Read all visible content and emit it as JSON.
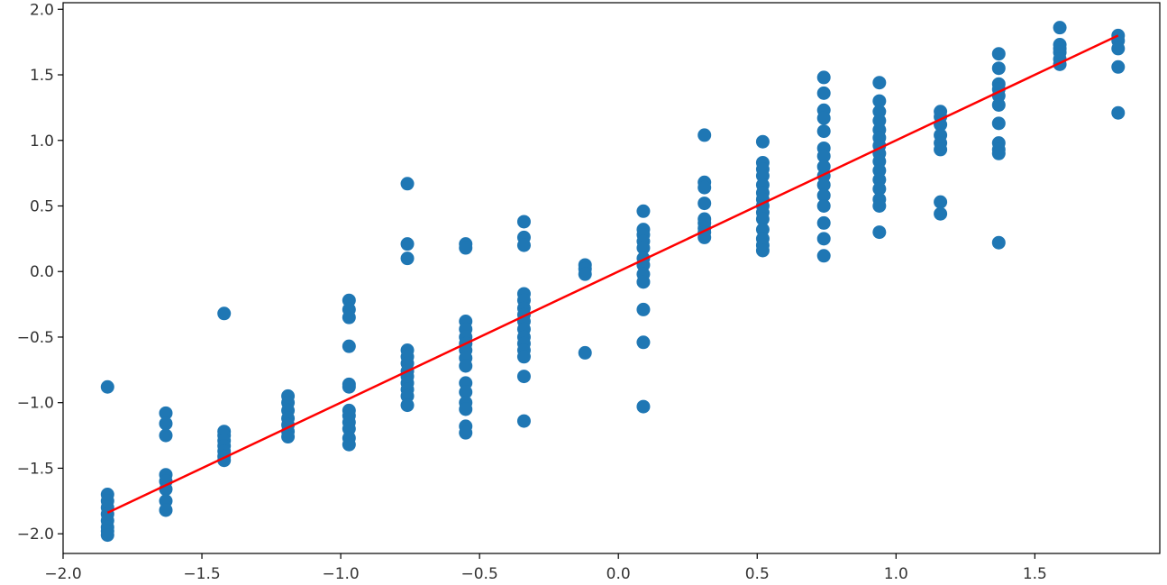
{
  "chart_data": {
    "type": "scatter",
    "title": "",
    "xlabel": "",
    "ylabel": "",
    "xlim": [
      -2.0,
      1.95
    ],
    "ylim": [
      -2.15,
      2.05
    ],
    "grid": false,
    "xticks": [
      -2.0,
      -1.5,
      -1.0,
      -0.5,
      0.0,
      0.5,
      1.0,
      1.5
    ],
    "xtick_labels": [
      "−2.0",
      "−1.5",
      "−1.0",
      "−0.5",
      "0.0",
      "0.5",
      "1.0",
      "1.5"
    ],
    "yticks": [
      -2.0,
      -1.5,
      -1.0,
      -0.5,
      0.0,
      0.5,
      1.0,
      1.5,
      2.0
    ],
    "ytick_labels": [
      "−2.0",
      "−1.5",
      "−1.0",
      "−0.5",
      "0.0",
      "0.5",
      "1.0",
      "1.5",
      "2.0"
    ],
    "point_color": "#1f77b4",
    "line_color": "#ff0000",
    "series": [
      {
        "kind": "scatter",
        "points": [
          [
            -1.84,
            -0.88
          ],
          [
            -1.84,
            -1.7
          ],
          [
            -1.84,
            -1.75
          ],
          [
            -1.84,
            -1.8
          ],
          [
            -1.84,
            -1.85
          ],
          [
            -1.84,
            -1.9
          ],
          [
            -1.84,
            -1.95
          ],
          [
            -1.84,
            -1.98
          ],
          [
            -1.84,
            -2.01
          ],
          [
            -1.63,
            -1.08
          ],
          [
            -1.63,
            -1.16
          ],
          [
            -1.63,
            -1.25
          ],
          [
            -1.63,
            -1.55
          ],
          [
            -1.63,
            -1.6
          ],
          [
            -1.63,
            -1.66
          ],
          [
            -1.63,
            -1.75
          ],
          [
            -1.63,
            -1.82
          ],
          [
            -1.42,
            -0.32
          ],
          [
            -1.42,
            -1.22
          ],
          [
            -1.42,
            -1.25
          ],
          [
            -1.42,
            -1.29
          ],
          [
            -1.42,
            -1.33
          ],
          [
            -1.42,
            -1.37
          ],
          [
            -1.42,
            -1.41
          ],
          [
            -1.42,
            -1.44
          ],
          [
            -1.19,
            -0.95
          ],
          [
            -1.19,
            -1.0
          ],
          [
            -1.19,
            -1.06
          ],
          [
            -1.19,
            -1.12
          ],
          [
            -1.19,
            -1.17
          ],
          [
            -1.19,
            -1.22
          ],
          [
            -1.19,
            -1.26
          ],
          [
            -0.97,
            -0.22
          ],
          [
            -0.97,
            -0.29
          ],
          [
            -0.97,
            -0.35
          ],
          [
            -0.97,
            -0.57
          ],
          [
            -0.97,
            -0.86
          ],
          [
            -0.97,
            -0.88
          ],
          [
            -0.97,
            -1.06
          ],
          [
            -0.97,
            -1.1
          ],
          [
            -0.97,
            -1.15
          ],
          [
            -0.97,
            -1.2
          ],
          [
            -0.97,
            -1.27
          ],
          [
            -0.97,
            -1.32
          ],
          [
            -0.76,
            0.67
          ],
          [
            -0.76,
            0.21
          ],
          [
            -0.76,
            0.1
          ],
          [
            -0.76,
            -0.6
          ],
          [
            -0.76,
            -0.65
          ],
          [
            -0.76,
            -0.7
          ],
          [
            -0.76,
            -0.76
          ],
          [
            -0.76,
            -0.8
          ],
          [
            -0.76,
            -0.85
          ],
          [
            -0.76,
            -0.9
          ],
          [
            -0.76,
            -0.95
          ],
          [
            -0.76,
            -1.02
          ],
          [
            -0.55,
            0.21
          ],
          [
            -0.55,
            0.18
          ],
          [
            -0.55,
            -0.38
          ],
          [
            -0.55,
            -0.44
          ],
          [
            -0.55,
            -0.5
          ],
          [
            -0.55,
            -0.55
          ],
          [
            -0.55,
            -0.6
          ],
          [
            -0.55,
            -0.66
          ],
          [
            -0.55,
            -0.72
          ],
          [
            -0.55,
            -0.85
          ],
          [
            -0.55,
            -0.92
          ],
          [
            -0.55,
            -1.0
          ],
          [
            -0.55,
            -1.05
          ],
          [
            -0.55,
            -1.18
          ],
          [
            -0.55,
            -1.23
          ],
          [
            -0.34,
            0.38
          ],
          [
            -0.34,
            0.26
          ],
          [
            -0.34,
            0.2
          ],
          [
            -0.34,
            -0.17
          ],
          [
            -0.34,
            -0.22
          ],
          [
            -0.34,
            -0.28
          ],
          [
            -0.34,
            -0.33
          ],
          [
            -0.34,
            -0.38
          ],
          [
            -0.34,
            -0.44
          ],
          [
            -0.34,
            -0.5
          ],
          [
            -0.34,
            -0.55
          ],
          [
            -0.34,
            -0.6
          ],
          [
            -0.34,
            -0.65
          ],
          [
            -0.34,
            -0.8
          ],
          [
            -0.34,
            -1.14
          ],
          [
            -0.12,
            0.05
          ],
          [
            -0.12,
            0.02
          ],
          [
            -0.12,
            -0.02
          ],
          [
            -0.12,
            -0.62
          ],
          [
            0.09,
            0.46
          ],
          [
            0.09,
            0.32
          ],
          [
            0.09,
            0.28
          ],
          [
            0.09,
            0.23
          ],
          [
            0.09,
            0.18
          ],
          [
            0.09,
            0.1
          ],
          [
            0.09,
            0.05
          ],
          [
            0.09,
            -0.02
          ],
          [
            0.09,
            -0.08
          ],
          [
            0.09,
            -0.29
          ],
          [
            0.09,
            -0.54
          ],
          [
            0.09,
            -1.03
          ],
          [
            0.31,
            1.04
          ],
          [
            0.31,
            0.68
          ],
          [
            0.31,
            0.64
          ],
          [
            0.31,
            0.52
          ],
          [
            0.31,
            0.4
          ],
          [
            0.31,
            0.37
          ],
          [
            0.31,
            0.33
          ],
          [
            0.31,
            0.3
          ],
          [
            0.31,
            0.26
          ],
          [
            0.52,
            0.99
          ],
          [
            0.52,
            0.83
          ],
          [
            0.52,
            0.78
          ],
          [
            0.52,
            0.73
          ],
          [
            0.52,
            0.66
          ],
          [
            0.52,
            0.6
          ],
          [
            0.52,
            0.55
          ],
          [
            0.52,
            0.5
          ],
          [
            0.52,
            0.45
          ],
          [
            0.52,
            0.4
          ],
          [
            0.52,
            0.32
          ],
          [
            0.52,
            0.25
          ],
          [
            0.52,
            0.2
          ],
          [
            0.52,
            0.16
          ],
          [
            0.74,
            1.48
          ],
          [
            0.74,
            1.36
          ],
          [
            0.74,
            1.23
          ],
          [
            0.74,
            1.17
          ],
          [
            0.74,
            1.07
          ],
          [
            0.74,
            0.94
          ],
          [
            0.74,
            0.88
          ],
          [
            0.74,
            0.8
          ],
          [
            0.74,
            0.73
          ],
          [
            0.74,
            0.66
          ],
          [
            0.74,
            0.58
          ],
          [
            0.74,
            0.5
          ],
          [
            0.74,
            0.37
          ],
          [
            0.74,
            0.25
          ],
          [
            0.74,
            0.12
          ],
          [
            0.94,
            1.44
          ],
          [
            0.94,
            1.3
          ],
          [
            0.94,
            1.22
          ],
          [
            0.94,
            1.15
          ],
          [
            0.94,
            1.08
          ],
          [
            0.94,
            1.02
          ],
          [
            0.94,
            0.96
          ],
          [
            0.94,
            0.9
          ],
          [
            0.94,
            0.84
          ],
          [
            0.94,
            0.77
          ],
          [
            0.94,
            0.7
          ],
          [
            0.94,
            0.63
          ],
          [
            0.94,
            0.55
          ],
          [
            0.94,
            0.5
          ],
          [
            0.94,
            0.3
          ],
          [
            1.16,
            1.22
          ],
          [
            1.16,
            1.18
          ],
          [
            1.16,
            1.12
          ],
          [
            1.16,
            1.04
          ],
          [
            1.16,
            0.98
          ],
          [
            1.16,
            0.93
          ],
          [
            1.16,
            0.53
          ],
          [
            1.16,
            0.44
          ],
          [
            1.37,
            1.66
          ],
          [
            1.37,
            1.55
          ],
          [
            1.37,
            1.43
          ],
          [
            1.37,
            1.39
          ],
          [
            1.37,
            1.34
          ],
          [
            1.37,
            1.27
          ],
          [
            1.37,
            1.13
          ],
          [
            1.37,
            0.98
          ],
          [
            1.37,
            0.93
          ],
          [
            1.37,
            0.9
          ],
          [
            1.37,
            0.22
          ],
          [
            1.59,
            1.86
          ],
          [
            1.59,
            1.73
          ],
          [
            1.59,
            1.7
          ],
          [
            1.59,
            1.67
          ],
          [
            1.59,
            1.62
          ],
          [
            1.59,
            1.58
          ],
          [
            1.8,
            1.8
          ],
          [
            1.8,
            1.76
          ],
          [
            1.8,
            1.7
          ],
          [
            1.8,
            1.56
          ],
          [
            1.8,
            1.21
          ]
        ]
      },
      {
        "kind": "line",
        "points": [
          [
            -1.84,
            -1.84
          ],
          [
            1.8,
            1.8
          ]
        ]
      }
    ]
  }
}
